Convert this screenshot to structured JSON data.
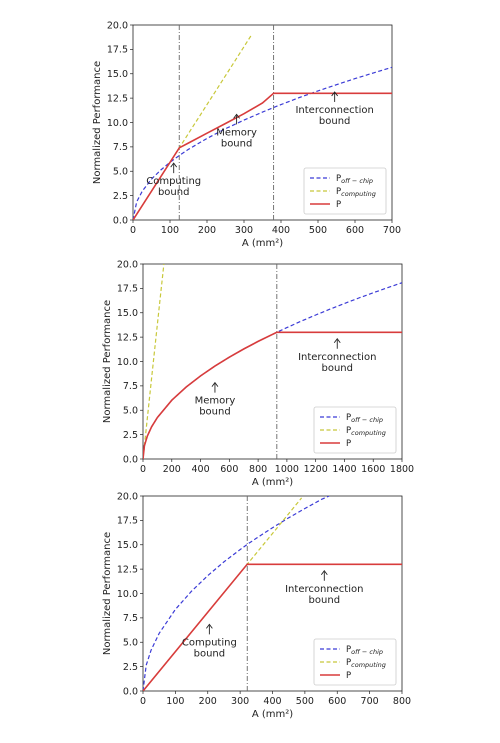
{
  "colors": {
    "off_chip": "#3b3bd6",
    "computing": "#c8c83a",
    "P": "#d83c3c",
    "vline": "#666666"
  },
  "chart_data": [
    {
      "type": "line",
      "xlabel": "A (mm²)",
      "ylabel": "Normalized Performance",
      "xlim": [
        0,
        700
      ],
      "ylim": [
        0,
        20
      ],
      "xticks": [
        "0",
        "100",
        "200",
        "300",
        "400",
        "500",
        "600",
        "700"
      ],
      "yticks": [
        "0.0",
        "2.5",
        "5.0",
        "7.5",
        "10.0",
        "12.5",
        "15.0",
        "17.5",
        "20.0"
      ],
      "vlines": [
        125,
        380
      ],
      "legend_position": "lower-right",
      "legend": [
        {
          "base": "P",
          "sub": "off − chip"
        },
        {
          "base": "P",
          "sub": "computing"
        },
        {
          "base": "P",
          "sub": ""
        }
      ],
      "series": [
        {
          "name": "P_off-chip",
          "style": "dashed",
          "x": [
            0,
            10,
            25,
            50,
            75,
            100,
            125,
            150,
            200,
            250,
            300,
            350,
            380,
            400,
            450,
            500,
            550,
            600,
            650,
            700
          ],
          "y": [
            0,
            1.87,
            2.96,
            4.19,
            5.13,
            5.92,
            6.62,
            7.25,
            8.37,
            9.36,
            10.25,
            11.07,
            11.54,
            11.84,
            12.56,
            13.24,
            13.88,
            14.5,
            15.09,
            15.66
          ]
        },
        {
          "name": "P_computing",
          "style": "dashed",
          "x": [
            0,
            125,
            250,
            320
          ],
          "y": [
            0,
            7.4,
            14.8,
            18.96
          ]
        },
        {
          "name": "P",
          "style": "solid",
          "x": [
            0,
            125,
            150,
            200,
            250,
            300,
            350,
            380,
            700
          ],
          "y": [
            0,
            7.4,
            7.9,
            8.9,
            9.9,
            10.9,
            12.0,
            13.0,
            13.0
          ]
        }
      ],
      "annotations": [
        {
          "text": "Computing\nbound",
          "x": 110,
          "y": 4.5,
          "arrow": true
        },
        {
          "text": "Memory\nbound",
          "x": 280,
          "y": 9.5,
          "arrow": true
        },
        {
          "text": "Interconnection\nbound",
          "x": 545,
          "y": 11.8,
          "arrow": true
        }
      ]
    },
    {
      "type": "line",
      "xlabel": "A (mm²)",
      "ylabel": "Normalized Performance",
      "xlim": [
        0,
        1800
      ],
      "ylim": [
        0,
        20
      ],
      "xticks": [
        "0",
        "200",
        "400",
        "600",
        "800",
        "1000",
        "1200",
        "1400",
        "1600",
        "1800"
      ],
      "yticks": [
        "0.0",
        "2.5",
        "5.0",
        "7.5",
        "10.0",
        "12.5",
        "15.0",
        "17.5",
        "20.0"
      ],
      "vlines": [
        930
      ],
      "legend_position": "lower-right",
      "legend": [
        {
          "base": "P",
          "sub": "off − chip"
        },
        {
          "base": "P",
          "sub": "computing"
        },
        {
          "base": "P",
          "sub": ""
        }
      ],
      "series": [
        {
          "name": "P_off-chip",
          "style": "dashed",
          "x": [
            0,
            10,
            30,
            60,
            100,
            200,
            300,
            400,
            500,
            600,
            700,
            800,
            930,
            1000,
            1100,
            1200,
            1300,
            1400,
            1500,
            1600,
            1700,
            1800
          ],
          "y": [
            0,
            1.35,
            2.34,
            3.3,
            4.26,
            6.03,
            7.38,
            8.52,
            9.53,
            10.44,
            11.28,
            12.06,
            13.0,
            13.48,
            14.14,
            14.77,
            15.37,
            15.95,
            16.51,
            17.05,
            17.57,
            18.08
          ]
        },
        {
          "name": "P_computing",
          "style": "dashed",
          "x": [
            0,
            60,
            120,
            145
          ],
          "y": [
            0,
            8.3,
            16.6,
            20
          ]
        },
        {
          "name": "P",
          "style": "solid",
          "x": [
            0,
            10,
            30,
            60,
            100,
            200,
            300,
            400,
            500,
            600,
            700,
            800,
            930,
            1800
          ],
          "y": [
            0,
            1.35,
            2.34,
            3.3,
            4.26,
            6.03,
            7.38,
            8.52,
            9.53,
            10.44,
            11.28,
            12.06,
            13.0,
            13.0
          ]
        }
      ],
      "annotations": [
        {
          "text": "Memory\nbound",
          "x": 500,
          "y": 6.5,
          "arrow": true
        },
        {
          "text": "Interconnection\nbound",
          "x": 1350,
          "y": 11.0,
          "arrow": true
        }
      ]
    },
    {
      "type": "line",
      "xlabel": "A (mm²)",
      "ylabel": "Normalized Performance",
      "xlim": [
        0,
        800
      ],
      "ylim": [
        0,
        20
      ],
      "xticks": [
        "0",
        "100",
        "200",
        "300",
        "400",
        "500",
        "600",
        "700",
        "800"
      ],
      "yticks": [
        "0.0",
        "2.5",
        "5.0",
        "7.5",
        "10.0",
        "12.5",
        "15.0",
        "17.5",
        "20.0"
      ],
      "vlines": [
        322
      ],
      "legend_position": "lower-right",
      "legend": [
        {
          "base": "P",
          "sub": "off − chip"
        },
        {
          "base": "P",
          "sub": "computing"
        },
        {
          "base": "P",
          "sub": ""
        }
      ],
      "series": [
        {
          "name": "P_off-chip",
          "style": "dashed",
          "x": [
            0,
            10,
            25,
            50,
            100,
            150,
            200,
            250,
            300,
            322,
            350,
            400,
            450,
            500,
            550,
            575
          ],
          "y": [
            0,
            2.65,
            4.19,
            5.92,
            8.37,
            10.25,
            11.84,
            13.24,
            14.5,
            15.04,
            15.66,
            16.75,
            17.76,
            18.72,
            19.63,
            20.0
          ]
        },
        {
          "name": "P_computing",
          "style": "dashed",
          "x": [
            0,
            322,
            400,
            490
          ],
          "y": [
            0,
            13.0,
            16.15,
            19.8
          ]
        },
        {
          "name": "P",
          "style": "solid",
          "x": [
            0,
            322,
            800
          ],
          "y": [
            0,
            13.0,
            13.0
          ]
        }
      ],
      "annotations": [
        {
          "text": "Computing\nbound",
          "x": 205,
          "y": 5.5,
          "arrow": true
        },
        {
          "text": "Interconnection\nbound",
          "x": 560,
          "y": 11.0,
          "arrow": true
        }
      ]
    }
  ]
}
